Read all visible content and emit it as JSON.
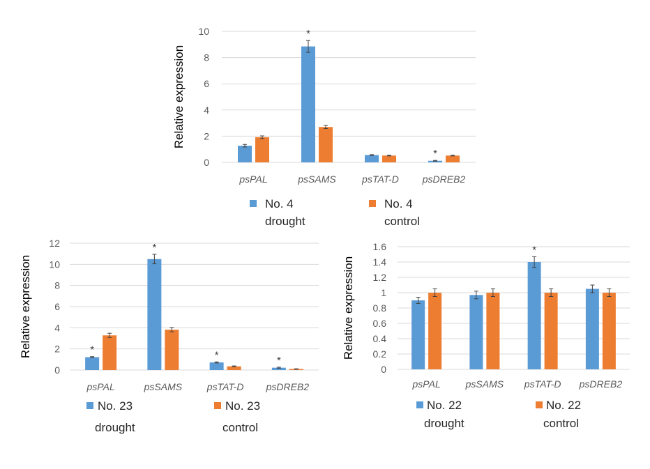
{
  "chart_data": [
    {
      "id": "no4",
      "type": "bar",
      "title": "",
      "xlabel": "",
      "ylabel": "Relative expression",
      "categories": [
        "psPAL",
        "psSAMS",
        "psTAT-D",
        "psDREB2"
      ],
      "ylim": [
        0,
        10
      ],
      "yticks": [
        0,
        2,
        4,
        6,
        8,
        10
      ],
      "ytick_labels": [
        "0",
        "2",
        "4",
        "6",
        "8",
        "10"
      ],
      "grid": true,
      "series": [
        {
          "name": "No. 4 drought",
          "legend_lines": [
            "No. 4",
            "drought"
          ],
          "color": "#5b9bd5",
          "values": [
            1.27,
            8.85,
            0.56,
            0.12
          ],
          "errors": [
            0.1,
            0.45,
            0.03,
            0.03
          ],
          "significant": [
            false,
            true,
            false,
            true
          ]
        },
        {
          "name": "No. 4 control",
          "legend_lines": [
            "No. 4",
            "control"
          ],
          "color": "#ed7d31",
          "values": [
            1.92,
            2.7,
            0.52,
            0.52
          ],
          "errors": [
            0.1,
            0.12,
            0.03,
            0.03
          ],
          "significant": [
            false,
            false,
            false,
            false
          ]
        }
      ],
      "legend_position": "bottom",
      "annotation": "*"
    },
    {
      "id": "no23",
      "type": "bar",
      "title": "",
      "xlabel": "",
      "ylabel": "Relative expression",
      "categories": [
        "psPAL",
        "psSAMS",
        "psTAT-D",
        "psDREB2"
      ],
      "ylim": [
        0,
        12
      ],
      "yticks": [
        0,
        2,
        4,
        6,
        8,
        10,
        12
      ],
      "ytick_labels": [
        "0",
        "2",
        "4",
        "6",
        "8",
        "10",
        "12"
      ],
      "grid": true,
      "series": [
        {
          "name": "No. 23 drought",
          "legend_lines": [
            "No. 23",
            "drought"
          ],
          "color": "#5b9bd5",
          "values": [
            1.22,
            10.5,
            0.72,
            0.22
          ],
          "errors": [
            0.05,
            0.45,
            0.05,
            0.05
          ],
          "significant": [
            true,
            true,
            true,
            true
          ]
        },
        {
          "name": "No. 23 control",
          "legend_lines": [
            "No. 23",
            "control"
          ],
          "color": "#ed7d31",
          "values": [
            3.28,
            3.82,
            0.35,
            0.1
          ],
          "errors": [
            0.2,
            0.2,
            0.04,
            0.02
          ],
          "significant": [
            false,
            false,
            false,
            false
          ]
        }
      ],
      "legend_position": "bottom",
      "annotation": "*"
    },
    {
      "id": "no22",
      "type": "bar",
      "title": "",
      "xlabel": "",
      "ylabel": "Relative expression",
      "categories": [
        "psPAL",
        "psSAMS",
        "psTAT-D",
        "psDREB2"
      ],
      "ylim": [
        0,
        1.6
      ],
      "yticks": [
        0,
        0.2,
        0.4,
        0.6,
        0.8,
        1.0,
        1.2,
        1.4,
        1.6
      ],
      "ytick_labels": [
        "0",
        "0.2",
        "0.4",
        "0.6",
        "0.8",
        "1",
        "1.2",
        "1.4",
        "1.6"
      ],
      "grid": true,
      "series": [
        {
          "name": "No. 22 drought",
          "legend_lines": [
            "No. 22",
            "drought"
          ],
          "color": "#5b9bd5",
          "values": [
            0.9,
            0.97,
            1.4,
            1.05
          ],
          "errors": [
            0.04,
            0.05,
            0.07,
            0.05
          ],
          "significant": [
            false,
            false,
            true,
            false
          ]
        },
        {
          "name": "No. 22 control",
          "legend_lines": [
            "No. 22",
            "control"
          ],
          "color": "#ed7d31",
          "values": [
            1.0,
            1.0,
            1.0,
            1.0
          ],
          "errors": [
            0.05,
            0.05,
            0.05,
            0.05
          ],
          "significant": [
            false,
            false,
            false,
            false
          ]
        }
      ],
      "legend_position": "bottom",
      "annotation": "*"
    }
  ]
}
